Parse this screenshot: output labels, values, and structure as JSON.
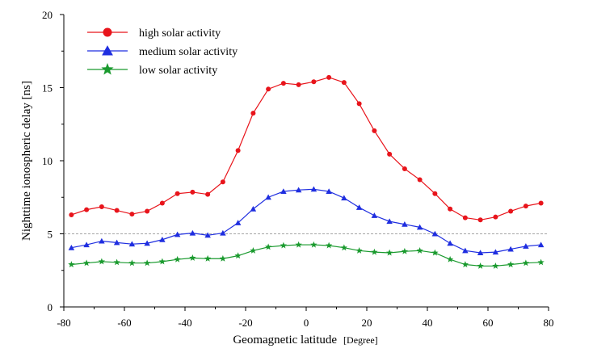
{
  "chart_data": {
    "type": "line",
    "xlabel": "Geomagnetic latitude",
    "xlabel_unit": "[Degree]",
    "ylabel": "Nighttime ionospheric delay [ns]",
    "xlim": [
      -80,
      80
    ],
    "ylim": [
      0,
      20
    ],
    "xticks": [
      "-80",
      "-60",
      "-40",
      "-20",
      "0",
      "20",
      "40",
      "60",
      "80"
    ],
    "yticks": [
      "0",
      "5",
      "10",
      "15",
      "20"
    ],
    "reference_line": {
      "y": 5,
      "style": "dashed",
      "color": "#888888"
    },
    "grid": false,
    "legend_position": "top-left",
    "x": [
      -77.5,
      -72.5,
      -67.5,
      -62.5,
      -57.5,
      -52.5,
      -47.5,
      -42.5,
      -37.5,
      -32.5,
      -27.5,
      -22.5,
      -17.5,
      -12.5,
      -7.5,
      -2.5,
      2.5,
      7.5,
      12.5,
      17.5,
      22.5,
      27.5,
      32.5,
      37.5,
      42.5,
      47.5,
      52.5,
      57.5,
      62.5,
      67.5,
      72.5,
      77.5
    ],
    "series": [
      {
        "name": "high solar activity",
        "color": "#e8141b",
        "marker": "circle",
        "values": [
          6.3,
          6.65,
          6.85,
          6.6,
          6.35,
          6.55,
          7.1,
          7.75,
          7.85,
          7.7,
          8.55,
          10.7,
          13.25,
          14.9,
          15.3,
          15.2,
          15.4,
          15.7,
          15.35,
          13.9,
          12.05,
          10.45,
          9.45,
          8.7,
          7.75,
          6.7,
          6.1,
          5.95,
          6.15,
          6.55,
          6.9,
          7.1
        ]
      },
      {
        "name": "medium solar activity",
        "color": "#1f2ee0",
        "marker": "triangle",
        "values": [
          4.05,
          4.25,
          4.5,
          4.4,
          4.3,
          4.35,
          4.6,
          4.95,
          5.05,
          4.9,
          5.05,
          5.75,
          6.7,
          7.5,
          7.9,
          8.0,
          8.05,
          7.9,
          7.45,
          6.8,
          6.25,
          5.85,
          5.65,
          5.45,
          5.0,
          4.35,
          3.85,
          3.7,
          3.75,
          3.95,
          4.15,
          4.25
        ]
      },
      {
        "name": "low solar activity",
        "color": "#1a9a2e",
        "marker": "star",
        "values": [
          2.9,
          3.0,
          3.1,
          3.05,
          3.0,
          3.0,
          3.1,
          3.25,
          3.35,
          3.3,
          3.3,
          3.5,
          3.85,
          4.1,
          4.2,
          4.25,
          4.25,
          4.2,
          4.05,
          3.85,
          3.75,
          3.7,
          3.8,
          3.85,
          3.7,
          3.25,
          2.9,
          2.8,
          2.8,
          2.9,
          3.0,
          3.05
        ]
      }
    ]
  }
}
